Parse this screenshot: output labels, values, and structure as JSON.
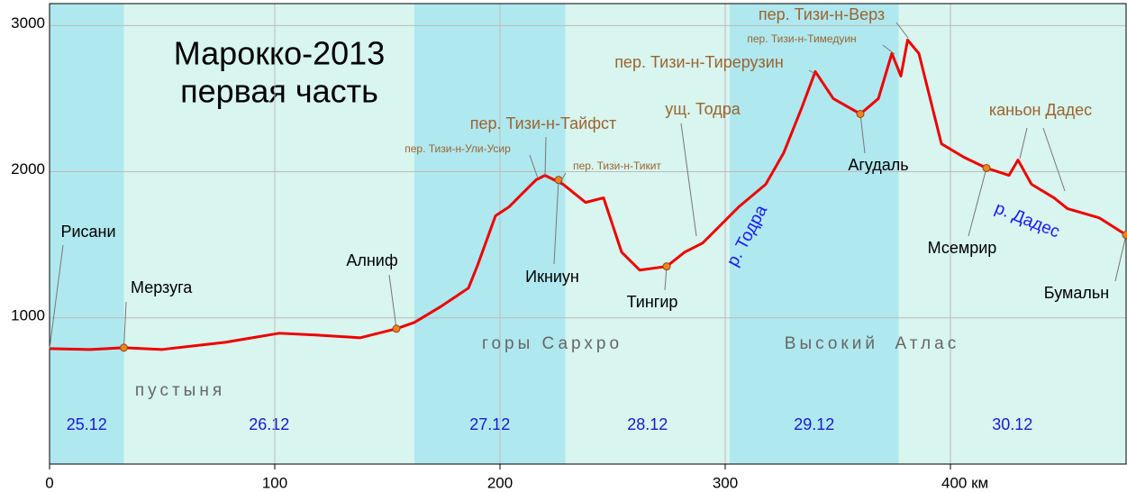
{
  "chart_data": {
    "type": "line",
    "title": "Марокко-2013",
    "subtitle": "первая часть",
    "color": "#ee0000",
    "x": [
      0,
      18,
      33,
      50,
      78,
      102,
      118,
      138,
      154,
      162,
      174,
      186,
      190,
      198,
      204,
      210,
      216,
      220,
      228,
      238,
      246,
      254,
      262,
      274,
      282,
      290,
      306,
      318,
      326,
      334,
      340,
      348,
      360,
      368,
      374,
      378,
      381,
      386,
      396,
      406,
      416,
      426,
      430,
      436,
      446,
      452,
      466,
      478
    ],
    "values": [
      790,
      784,
      796,
      784,
      833,
      895,
      883,
      864,
      926,
      969,
      1080,
      1204,
      1358,
      1698,
      1759,
      1852,
      1944,
      1975,
      1914,
      1790,
      1821,
      1450,
      1327,
      1352,
      1450,
      1512,
      1759,
      1914,
      2130,
      2438,
      2685,
      2500,
      2395,
      2500,
      2809,
      2654,
      2901,
      2809,
      2191,
      2099,
      2025,
      1975,
      2080,
      1914,
      1821,
      1747,
      1685,
      1568
    ],
    "xlim": [
      0,
      478
    ],
    "ylim": [
      0,
      3150
    ],
    "xticks": [
      0,
      100,
      200,
      300,
      {
        "value": 400,
        "label": "400 км"
      }
    ],
    "yticks": [
      1000,
      2000,
      3000
    ],
    "grid": true,
    "days": [
      {
        "label": "25.12",
        "from": 0,
        "to": 33
      },
      {
        "label": "26.12",
        "from": 33,
        "to": 162
      },
      {
        "label": "27.12",
        "from": 162,
        "to": 229
      },
      {
        "label": "28.12",
        "from": 229,
        "to": 302
      },
      {
        "label": "29.12",
        "from": 302,
        "to": 377
      },
      {
        "label": "30.12",
        "from": 377,
        "to": 478
      }
    ],
    "band_colors": [
      "#b0e8ef",
      "#d8f5ef"
    ],
    "annotations": [
      {
        "label": "Мерзуга",
        "x": 33,
        "y": 796
      },
      {
        "label": "Алниф",
        "x": 154,
        "y": 926
      },
      {
        "label": "Икниун",
        "x": 226,
        "y": 1944
      },
      {
        "label": "Тингир",
        "x": 274,
        "y": 1352
      },
      {
        "label": "Агудаль",
        "x": 360,
        "y": 2395
      },
      {
        "label": "Мсемрир",
        "x": 416,
        "y": 2025
      },
      {
        "label": "Бумальн",
        "x": 478,
        "y": 1568
      }
    ],
    "point_color": "#f08020",
    "labels": [
      "Рисани"
    ],
    "passes": [
      "пер. Тизи-н-Тайфст",
      "пер. Тизи-н-Ули-Усир",
      "пер. Тизи-н-Тикит",
      "ущ. Тодра",
      "пер. Тизи-н-Тирерузин",
      "пер. Тизи-н-Тимедуин",
      "пер. Тизи-н-Верз",
      "каньон Дадес"
    ],
    "rivers": [
      "р. Тодра",
      "р. Дадес"
    ],
    "regions": [
      "пустыня",
      "горы Сархро",
      "Высокий  Атлас"
    ]
  }
}
